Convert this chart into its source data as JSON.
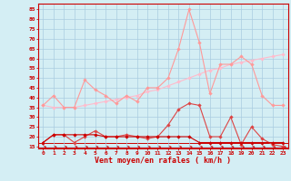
{
  "x": [
    0,
    1,
    2,
    3,
    4,
    5,
    6,
    7,
    8,
    9,
    10,
    11,
    12,
    13,
    14,
    15,
    16,
    17,
    18,
    19,
    20,
    21,
    22,
    23
  ],
  "line_dark": [
    17,
    21,
    21,
    21,
    21,
    21,
    20,
    20,
    20,
    20,
    20,
    20,
    20,
    20,
    20,
    17,
    17,
    17,
    17,
    17,
    17,
    17,
    17,
    17
  ],
  "line_mid": [
    17,
    21,
    21,
    17,
    20,
    23,
    20,
    20,
    21,
    20,
    19,
    20,
    26,
    34,
    37,
    36,
    20,
    20,
    30,
    16,
    25,
    19,
    16,
    15
  ],
  "line_light_jagged": [
    36,
    41,
    35,
    35,
    49,
    44,
    41,
    37,
    41,
    38,
    45,
    45,
    50,
    65,
    85,
    68,
    42,
    57,
    57,
    61,
    57,
    41,
    36,
    36
  ],
  "line_light_trend": [
    36,
    35,
    35,
    35,
    36,
    37,
    38,
    39,
    40,
    41,
    43,
    44,
    46,
    48,
    50,
    52,
    54,
    55,
    57,
    58,
    59,
    60,
    61,
    62
  ],
  "bg_color": "#d4eef4",
  "grid_color": "#aacce0",
  "line_dark_color": "#cc0000",
  "line_mid_color": "#dd4444",
  "line_jagged_color": "#ff9999",
  "line_trend_color": "#ffbbcc",
  "xlabel": "Vent moyen/en rafales ( km/h )",
  "ylim": [
    14,
    88
  ],
  "yticks": [
    15,
    20,
    25,
    30,
    35,
    40,
    45,
    50,
    55,
    60,
    65,
    70,
    75,
    80,
    85
  ],
  "xticks": [
    0,
    1,
    2,
    3,
    4,
    5,
    6,
    7,
    8,
    9,
    10,
    11,
    12,
    13,
    14,
    15,
    16,
    17,
    18,
    19,
    20,
    21,
    22,
    23
  ]
}
